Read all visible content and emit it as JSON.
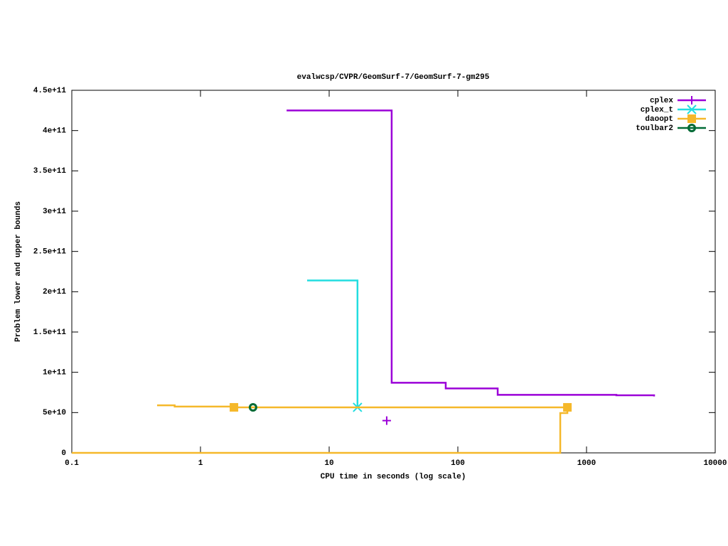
{
  "chart_data": {
    "type": "step-line",
    "title": "evalwcsp/CVPR/GeomSurf-7/GeomSurf-7-gm295",
    "x_label": "CPU time in seconds (log scale)",
    "y_label": "Problem lower and upper bounds",
    "x_log": true,
    "xlim": [
      0.1,
      10000
    ],
    "xticks": [
      0.1,
      1,
      10,
      100,
      1000,
      10000
    ],
    "ylim": [
      0,
      450000000000
    ],
    "yticks": [
      0,
      {
        "value": 50000000000,
        "label": "5e+10"
      },
      {
        "value": 100000000000,
        "label": "1e+11"
      },
      {
        "value": 150000000000,
        "label": "1.5e+11"
      },
      {
        "value": 200000000000,
        "label": "2e+11"
      },
      {
        "value": 250000000000,
        "label": "2.5e+11"
      },
      {
        "value": 300000000000,
        "label": "3e+11"
      },
      {
        "value": 350000000000,
        "label": "3.5e+11"
      },
      {
        "value": 400000000000,
        "label": "4e+11"
      },
      {
        "value": 450000000000,
        "label": "4.5e+11"
      }
    ],
    "grid": false,
    "legend": "top-right",
    "series": [
      {
        "name": "cplex",
        "color": "#9b00d8",
        "marker": "plus",
        "x": [
          4.67,
          30.6,
          80.5,
          204,
          1706,
          3350
        ],
        "values": [
          425000000000,
          87000000000,
          80000000000,
          72000000000,
          71500000000,
          70000000000
        ],
        "point_x": [
          28
        ],
        "point_values": [
          40000000000
        ]
      },
      {
        "name": "cplex_t",
        "color": "#22dde0",
        "marker": "star",
        "x": [
          6.74,
          16.6
        ],
        "values": [
          214000000000,
          56500000000
        ],
        "point_x": [
          16.6
        ],
        "point_values": [
          56500000000
        ]
      },
      {
        "name": "daoopt",
        "color": "#f5b82a",
        "marker": "square",
        "x": [
          0.46,
          0.63,
          1.82,
          710,
          null,
          0.1,
          625,
          710
        ],
        "values": [
          59000000000,
          57500000000,
          56500000000,
          56500000000,
          null,
          0,
          49400000000,
          56500000000
        ],
        "point_x": [
          1.82,
          710
        ],
        "point_values": [
          56500000000,
          56500000000
        ]
      },
      {
        "name": "toulbar2",
        "color": "#006a35",
        "marker": "circle",
        "x": [],
        "values": [],
        "point_x": [
          2.56
        ],
        "point_values": [
          56500000000
        ]
      }
    ]
  }
}
